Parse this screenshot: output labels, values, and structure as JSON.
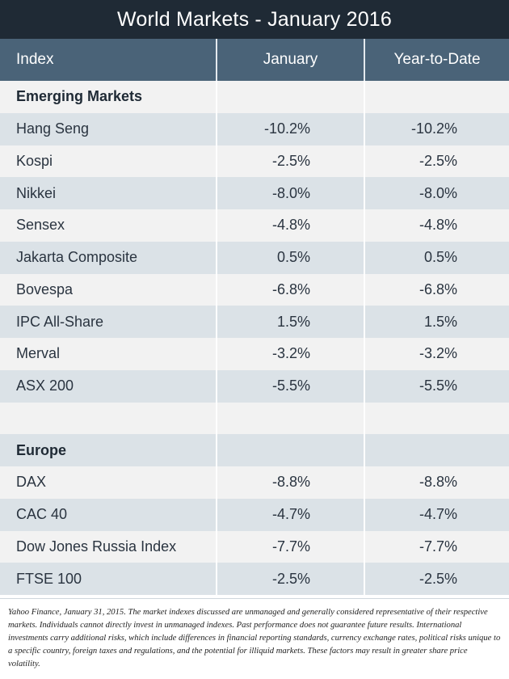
{
  "title": "World Markets - January 2016",
  "headers": {
    "index": "Index",
    "january": "January",
    "ytd": "Year-to-Date"
  },
  "rows": [
    {
      "name": "Emerging Markets",
      "january": "",
      "ytd": "",
      "section": true
    },
    {
      "name": "Hang Seng",
      "january": "-10.2%",
      "ytd": "-10.2%"
    },
    {
      "name": "Kospi",
      "january": "-2.5%",
      "ytd": "-2.5%"
    },
    {
      "name": "Nikkei",
      "january": "-8.0%",
      "ytd": "-8.0%"
    },
    {
      "name": "Sensex",
      "january": "-4.8%",
      "ytd": "-4.8%"
    },
    {
      "name": "Jakarta Composite",
      "january": "0.5%",
      "ytd": "0.5%"
    },
    {
      "name": "Bovespa",
      "january": "-6.8%",
      "ytd": "-6.8%"
    },
    {
      "name": "IPC All-Share",
      "january": "1.5%",
      "ytd": "1.5%"
    },
    {
      "name": "Merval",
      "january": "-3.2%",
      "ytd": "-3.2%"
    },
    {
      "name": "ASX 200",
      "january": "-5.5%",
      "ytd": "-5.5%"
    },
    {
      "name": "",
      "january": "",
      "ytd": ""
    },
    {
      "name": "Europe",
      "january": "",
      "ytd": "",
      "section": true
    },
    {
      "name": "DAX",
      "january": "-8.8%",
      "ytd": "-8.8%"
    },
    {
      "name": "CAC 40",
      "january": "-4.7%",
      "ytd": "-4.7%"
    },
    {
      "name": "Dow Jones Russia Index",
      "january": "-7.7%",
      "ytd": "-7.7%"
    },
    {
      "name": "FTSE 100",
      "january": "-2.5%",
      "ytd": "-2.5%"
    }
  ],
  "footnote": "Yahoo Finance, January 31, 2015. The market indexes discussed are unmanaged and generally considered representative of their respective markets. Individuals cannot directly invest in unmanaged indexes. Past performance does not guarantee future results. International investments carry additional risks, which include differences in financial reporting standards, currency exchange rates, political risks unique to a specific country, foreign taxes and regulations, and the potential for illiquid markets. These factors may result in greater share price volatility.",
  "colors": {
    "title_bg": "#1f2a35",
    "header_bg": "#4a6378",
    "row_light": "#f2f2f2",
    "row_dark": "#dbe2e7"
  }
}
